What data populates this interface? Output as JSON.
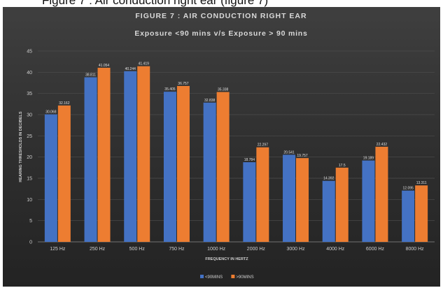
{
  "top_caption": "Figure 7 : Air conduction right ear (figure 7)",
  "chart_data": {
    "type": "bar",
    "title": "FIGURE 7 : AIR CONDUCTION RIGHT EAR",
    "subtitle": "Exposure <90 mins v/s Exposure > 90 mins",
    "xlabel": "FREQUENCY IN HERTZ",
    "ylabel": "HEARING THRESHOLDS IN DECIBELS",
    "ylim": [
      0,
      45
    ],
    "yticks": [
      0,
      5,
      10,
      15,
      20,
      25,
      30,
      35,
      40,
      45
    ],
    "grid": true,
    "legend_position": "bottom",
    "categories": [
      "125 Hz",
      "250 Hz",
      "500 Hz",
      "750 Hz",
      "1000 Hz",
      "2000 Hz",
      "3000 Hz",
      "4000 Hz",
      "6000 Hz",
      "8000 Hz"
    ],
    "series": [
      {
        "name": "<90MINS",
        "color": "#4472c4",
        "values": [
          30.068,
          38.811,
          40.244,
          35.405,
          32.838,
          18.784,
          20.541,
          14.392,
          19.189,
          12.095
        ],
        "labels": [
          "30.068",
          "38.811",
          "40.244",
          "35.405",
          "32.838",
          "18.784",
          "20.541",
          "14.392",
          "19.189",
          "12.095"
        ]
      },
      {
        "name": ">90MINS",
        "color": "#ed7d31",
        "values": [
          32.162,
          41.054,
          41.419,
          36.757,
          35.338,
          22.297,
          19.757,
          17.5,
          22.432,
          13.311
        ],
        "labels": [
          "32.162",
          "41.054",
          "41.419",
          "36.757",
          "35.338",
          "22.297",
          "19.757",
          "17.5",
          "22.432",
          "13.311"
        ]
      }
    ]
  }
}
